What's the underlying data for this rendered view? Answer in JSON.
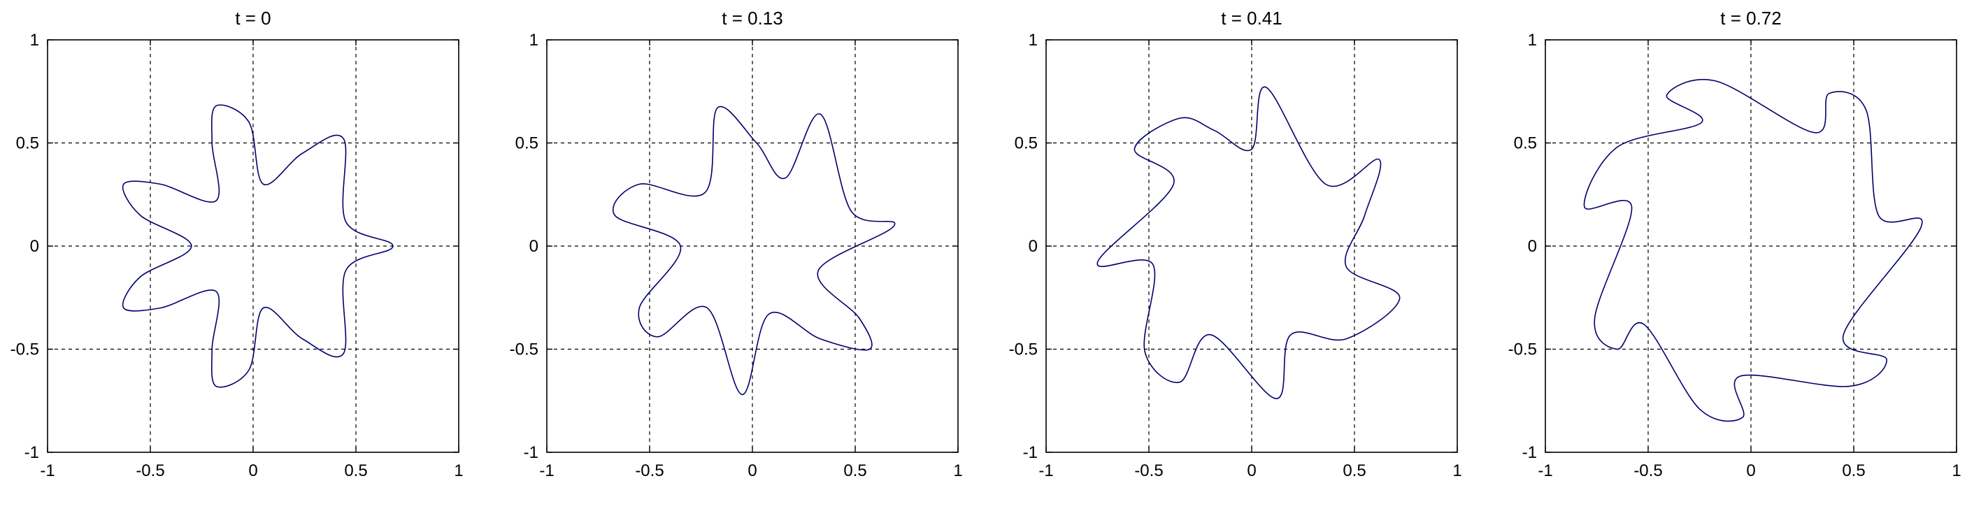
{
  "figure": {
    "background": "#ffffff",
    "curve_color": "#00006e",
    "grid_color": "#000000",
    "axes_color": "#000000"
  },
  "chart_data": [
    {
      "type": "line",
      "title": "t = 0",
      "xlim": [
        -1,
        1
      ],
      "ylim": [
        -1,
        1
      ],
      "xticks": [
        "-1",
        "-0.5",
        "0",
        "0.5",
        "1"
      ],
      "yticks": [
        "-1",
        "-0.5",
        "0",
        "0.5",
        "1"
      ],
      "grid": true,
      "grid_style": "dashed",
      "series": [
        {
          "points": [
            [
              0.68,
              0.0
            ],
            [
              0.45,
              0.12
            ],
            [
              0.44,
              0.52
            ],
            [
              0.24,
              0.45
            ],
            [
              0.05,
              0.3
            ],
            [
              -0.02,
              0.6
            ],
            [
              -0.18,
              0.68
            ],
            [
              -0.2,
              0.5
            ],
            [
              -0.18,
              0.22
            ],
            [
              -0.45,
              0.3
            ],
            [
              -0.63,
              0.3
            ],
            [
              -0.55,
              0.15
            ],
            [
              -0.3,
              0.0
            ],
            [
              -0.55,
              -0.15
            ],
            [
              -0.63,
              -0.3
            ],
            [
              -0.45,
              -0.3
            ],
            [
              -0.18,
              -0.22
            ],
            [
              -0.2,
              -0.5
            ],
            [
              -0.18,
              -0.68
            ],
            [
              -0.02,
              -0.6
            ],
            [
              0.05,
              -0.3
            ],
            [
              0.24,
              -0.45
            ],
            [
              0.44,
              -0.52
            ],
            [
              0.45,
              -0.12
            ],
            [
              0.68,
              0.0
            ]
          ]
        }
      ]
    },
    {
      "type": "line",
      "title": "t = 0.13",
      "xlim": [
        -1,
        1
      ],
      "ylim": [
        -1,
        1
      ],
      "xticks": [
        "-1",
        "-0.5",
        "0",
        "0.5",
        "1"
      ],
      "yticks": [
        "-1",
        "-0.5",
        "0",
        "0.5",
        "1"
      ],
      "grid": true,
      "grid_style": "dashed",
      "series": [
        {
          "points": [
            [
              0.69,
              0.1
            ],
            [
              0.48,
              0.17
            ],
            [
              0.33,
              0.64
            ],
            [
              0.16,
              0.33
            ],
            [
              0.02,
              0.5
            ],
            [
              -0.17,
              0.67
            ],
            [
              -0.23,
              0.26
            ],
            [
              -0.55,
              0.3
            ],
            [
              -0.67,
              0.15
            ],
            [
              -0.35,
              0.0
            ],
            [
              -0.55,
              -0.3
            ],
            [
              -0.46,
              -0.44
            ],
            [
              -0.22,
              -0.3
            ],
            [
              -0.05,
              -0.72
            ],
            [
              0.08,
              -0.33
            ],
            [
              0.33,
              -0.45
            ],
            [
              0.57,
              -0.5
            ],
            [
              0.52,
              -0.35
            ],
            [
              0.32,
              -0.12
            ],
            [
              0.69,
              0.1
            ]
          ]
        }
      ]
    },
    {
      "type": "line",
      "title": "t = 0.41",
      "xlim": [
        -1,
        1
      ],
      "ylim": [
        -1,
        1
      ],
      "xticks": [
        "-1",
        "-0.5",
        "0",
        "0.5",
        "1"
      ],
      "yticks": [
        "-1",
        "-0.5",
        "0",
        "0.5",
        "1"
      ],
      "grid": true,
      "grid_style": "dashed",
      "series": [
        {
          "points": [
            [
              0.72,
              -0.25
            ],
            [
              0.46,
              -0.45
            ],
            [
              0.19,
              -0.43
            ],
            [
              0.12,
              -0.74
            ],
            [
              -0.2,
              -0.43
            ],
            [
              -0.35,
              -0.66
            ],
            [
              -0.52,
              -0.51
            ],
            [
              -0.48,
              -0.09
            ],
            [
              -0.75,
              -0.08
            ],
            [
              -0.38,
              0.3
            ],
            [
              -0.57,
              0.47
            ],
            [
              -0.35,
              0.62
            ],
            [
              -0.18,
              0.56
            ],
            [
              0.0,
              0.47
            ],
            [
              0.07,
              0.77
            ],
            [
              0.36,
              0.3
            ],
            [
              0.62,
              0.42
            ],
            [
              0.55,
              0.15
            ],
            [
              0.46,
              -0.1
            ],
            [
              0.72,
              -0.25
            ]
          ]
        }
      ]
    },
    {
      "type": "line",
      "title": "t = 0.72",
      "xlim": [
        -1,
        1
      ],
      "ylim": [
        -1,
        1
      ],
      "xticks": [
        "-1",
        "-0.5",
        "0",
        "0.5",
        "1"
      ],
      "yticks": [
        "-1",
        "-0.5",
        "0",
        "0.5",
        "1"
      ],
      "grid": true,
      "grid_style": "dashed",
      "series": [
        {
          "points": [
            [
              0.83,
              0.1
            ],
            [
              0.45,
              -0.43
            ],
            [
              0.66,
              -0.55
            ],
            [
              0.48,
              -0.68
            ],
            [
              -0.05,
              -0.63
            ],
            [
              -0.04,
              -0.83
            ],
            [
              -0.25,
              -0.79
            ],
            [
              -0.52,
              -0.38
            ],
            [
              -0.65,
              -0.5
            ],
            [
              -0.76,
              -0.35
            ],
            [
              -0.58,
              0.19
            ],
            [
              -0.81,
              0.19
            ],
            [
              -0.65,
              0.48
            ],
            [
              -0.24,
              0.6
            ],
            [
              -0.41,
              0.73
            ],
            [
              -0.17,
              0.8
            ],
            [
              0.31,
              0.55
            ],
            [
              0.38,
              0.74
            ],
            [
              0.56,
              0.66
            ],
            [
              0.62,
              0.15
            ],
            [
              0.83,
              0.1
            ]
          ]
        }
      ]
    }
  ]
}
